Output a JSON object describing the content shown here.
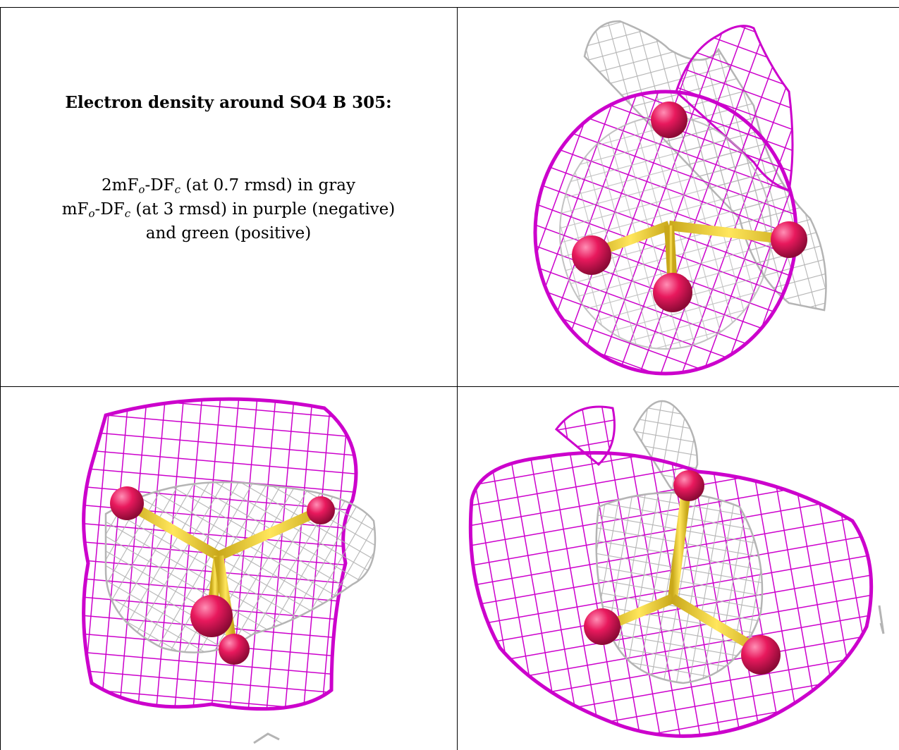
{
  "caption": {
    "title": "Electron density around SO4 B 305:",
    "line1": {
      "a": "2mF",
      "o": "o",
      "b": "-DF",
      "c": "c",
      "rest": " (at 0.7 rmsd) in gray"
    },
    "line2": {
      "a": "mF",
      "o": "o",
      "b": "-DF",
      "c": "c",
      "rest": " (at 3 rmsd) in purple (negative)"
    },
    "line3": "and green (positive)"
  },
  "colors": {
    "gray_mesh": "#b4b4b4",
    "purple_mesh": "#cc00cc",
    "sulfur": "#f2d33a",
    "oxygen": "#e8195d",
    "border": "#000000"
  },
  "views": [
    {
      "name": "view-top-right"
    },
    {
      "name": "view-bottom-left"
    },
    {
      "name": "view-bottom-right"
    }
  ]
}
